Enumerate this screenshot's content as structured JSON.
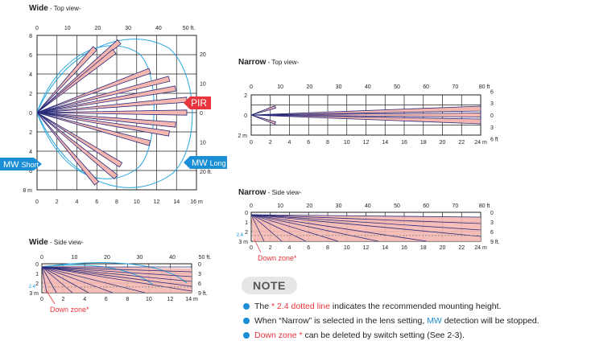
{
  "wide_top": {
    "title": "Wide",
    "subtitle": " - Top view-",
    "x_ticks_ft": [
      "0",
      "10",
      "20",
      "30",
      "40",
      "50 ft."
    ],
    "y_ticks_m": [
      "8",
      "6",
      "4",
      "2",
      "0",
      "2",
      "4",
      "6",
      "8 m"
    ],
    "x_ticks_m": [
      "0",
      "2",
      "4",
      "6",
      "8",
      "10",
      "12",
      "14",
      "16 m"
    ],
    "y_ticks_ft_right": [
      "20",
      "10",
      "0",
      "10",
      "20 ft."
    ],
    "pir_label": "PIR",
    "mw_short_label_a": "MW ",
    "mw_short_label_b": "Short",
    "mw_long_label_a": "MW ",
    "mw_long_label_b": "Long"
  },
  "wide_side": {
    "title": "Wide",
    "subtitle": " - Side view-",
    "x_ticks_ft": [
      "0",
      "10",
      "20",
      "30",
      "40",
      "50 ft."
    ],
    "y_ticks_m": [
      "0",
      "1",
      "2",
      "3 m"
    ],
    "dotted_label": "2.4",
    "x_ticks_m": [
      "0",
      "2",
      "4",
      "6",
      "8",
      "10",
      "12",
      "14 m"
    ],
    "y_ticks_ft_right": [
      "0",
      "3",
      "6",
      "9 ft."
    ],
    "down_zone": "Down zone*"
  },
  "narrow_top": {
    "title": "Narrow",
    "subtitle": " - Top view-",
    "x_ticks_ft": [
      "0",
      "10",
      "20",
      "30",
      "40",
      "50",
      "60",
      "70",
      "80 ft"
    ],
    "y_ticks_m": [
      "2",
      "0",
      "2 m"
    ],
    "x_ticks_m": [
      "0",
      "2",
      "4",
      "6",
      "8",
      "10",
      "12",
      "14",
      "16",
      "18",
      "20",
      "22",
      "24 m"
    ],
    "y_ticks_ft_right": [
      "6",
      "3",
      "0",
      "3",
      "6 ft"
    ]
  },
  "narrow_side": {
    "title": "Narrow",
    "subtitle": " - Side view-",
    "x_ticks_ft": [
      "0",
      "10",
      "20",
      "30",
      "40",
      "50",
      "60",
      "70",
      "80 ft"
    ],
    "y_ticks_m": [
      "0",
      "1",
      "2",
      "3 m"
    ],
    "dotted_label": "2.4",
    "x_ticks_m": [
      "0",
      "2",
      "4",
      "6",
      "8",
      "10",
      "12",
      "14",
      "16",
      "18",
      "20",
      "22",
      "24 m"
    ],
    "y_ticks_ft_right": [
      "0",
      "3",
      "6",
      "9 ft."
    ],
    "down_zone": "Down zone*"
  },
  "note": {
    "heading": "NOTE",
    "items": [
      {
        "pre": "The ",
        "highlight": "* 2.4 dotted line",
        "post": "  indicates the recommended mounting height."
      },
      {
        "pre": "When “Narrow” is selected in the lens setting, ",
        "highlight": "MW",
        "post": " detection will be stopped."
      },
      {
        "pre": "",
        "highlight": "Down zone *",
        "post": "  can be deleted by switch setting (See 2-3)."
      }
    ]
  },
  "colors": {
    "beam_fill": "#f4b7b0",
    "beam_stroke": "#2a2a7a",
    "mw": "#2aa6e0",
    "pir": "#e8343c",
    "grid": "#222"
  }
}
